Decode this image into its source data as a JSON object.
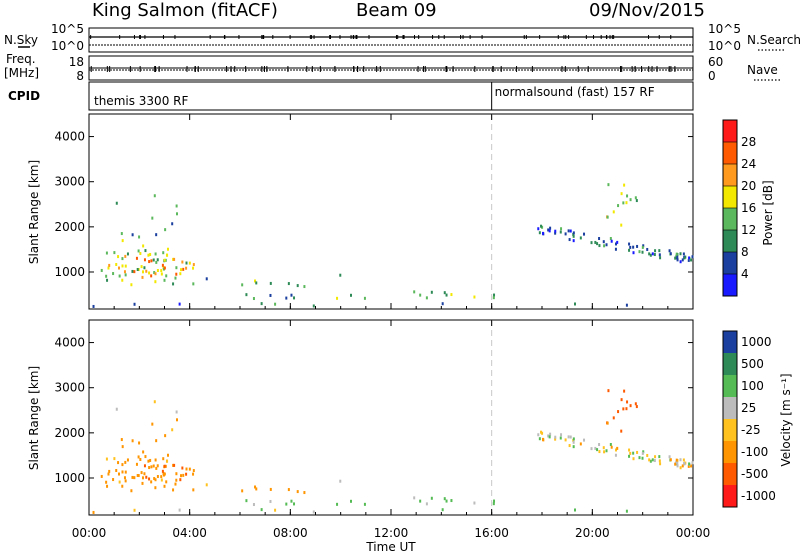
{
  "header": {
    "station": "King Salmon (fitACF)",
    "beam": "Beam 09",
    "date": "09/Nov/2015"
  },
  "top_panels": {
    "nsky_label": "N.Sky",
    "nsky_ticks": [
      "10^5",
      "10^0"
    ],
    "nsearch_label": "N.Search",
    "nsearch_ticks": [
      "10^5",
      "10^0"
    ],
    "freq_label_1": "Freq.",
    "freq_label_2": "[MHz]",
    "freq_ticks": [
      "18",
      "8"
    ],
    "nave_label": "Nave",
    "nave_ticks": [
      "60",
      "0"
    ],
    "cpid_label": "CPID",
    "cpid_segments": [
      {
        "label": "themis 3300 RF",
        "start_hour": 0
      },
      {
        "label": "normalsound (fast) 157 RF",
        "start_hour": 16
      }
    ]
  },
  "axis": {
    "x_ticks": [
      "00:00",
      "04:00",
      "08:00",
      "12:00",
      "16:00",
      "20:00",
      "00:00"
    ],
    "x_label": "Time UT",
    "y_label": "Slant Range [km]",
    "y_ticks": [
      "4000",
      "3000",
      "2000",
      "1000"
    ]
  },
  "power_scale": {
    "label": "Power [dB]",
    "ticks": [
      "28",
      "24",
      "20",
      "16",
      "12",
      "8",
      "4"
    ],
    "colors": [
      "#ff1a1a",
      "#ff5a00",
      "#ff9a1e",
      "#f2e800",
      "#5cb85c",
      "#2e8b57",
      "#1a3f9e",
      "#1a1aff"
    ]
  },
  "velocity_scale": {
    "label": "Velocity [m s⁻¹]",
    "ticks": [
      "1000",
      "500",
      "100",
      "25",
      "-25",
      "-100",
      "-500",
      "-1000"
    ],
    "colors": [
      "#1a3f9e",
      "#2e8b57",
      "#55bb55",
      "#bcbcbc",
      "#ffc21e",
      "#ff9500",
      "#ff5a00",
      "#ff1a1a"
    ]
  },
  "chart_data": {
    "type": "heatmap",
    "x_range_hours": [
      0,
      24
    ],
    "y_range_km": [
      180,
      4500
    ],
    "power_range_db": [
      0,
      30
    ],
    "velocity_range": [
      -1000,
      1000
    ],
    "cpid_change_hour": 16,
    "regions": [
      {
        "name": "early-echo-main",
        "t0": 0.3,
        "t1": 4.2,
        "r0": 700,
        "r1": 1500,
        "power": 14,
        "velocity": -150,
        "density": 0.85
      },
      {
        "name": "early-core",
        "t0": 1.6,
        "t1": 4.2,
        "r0": 850,
        "r1": 1300,
        "power": 22,
        "velocity": -300,
        "density": 0.8
      },
      {
        "name": "early-high",
        "t0": 1.0,
        "t1": 3.5,
        "r0": 1500,
        "r1": 2700,
        "power": 10,
        "velocity": -60,
        "density": 0.2
      },
      {
        "name": "band-0430",
        "t0": 4.3,
        "t1": 5.0,
        "r0": 700,
        "r1": 850,
        "power": 10,
        "velocity": -100,
        "density": 0.6
      },
      {
        "name": "band-0630",
        "t0": 6.0,
        "t1": 8.8,
        "r0": 650,
        "r1": 850,
        "power": 14,
        "velocity": -200,
        "density": 0.6
      },
      {
        "name": "band-0930",
        "t0": 9.3,
        "t1": 10.0,
        "r0": 800,
        "r1": 950,
        "power": 12,
        "velocity": -50,
        "density": 0.5
      },
      {
        "name": "near-range-belt",
        "t0": 4.5,
        "t1": 16.5,
        "r0": 400,
        "r1": 560,
        "power": 11,
        "velocity": 80,
        "density": 0.45
      },
      {
        "name": "ground-line",
        "t0": 0,
        "t1": 24,
        "r0": 180,
        "r1": 300,
        "power": 8,
        "velocity": 0,
        "density": 0.3
      },
      {
        "name": "evening-slope",
        "t0": 17.8,
        "t1": 24,
        "r0": 1200,
        "r1": 2000,
        "power": 8,
        "velocity": 10,
        "density": 0.7
      },
      {
        "name": "late-high",
        "t0": 20.5,
        "t1": 21.8,
        "r0": 2000,
        "r1": 3000,
        "power": 14,
        "velocity": -400,
        "density": 0.5
      }
    ]
  }
}
